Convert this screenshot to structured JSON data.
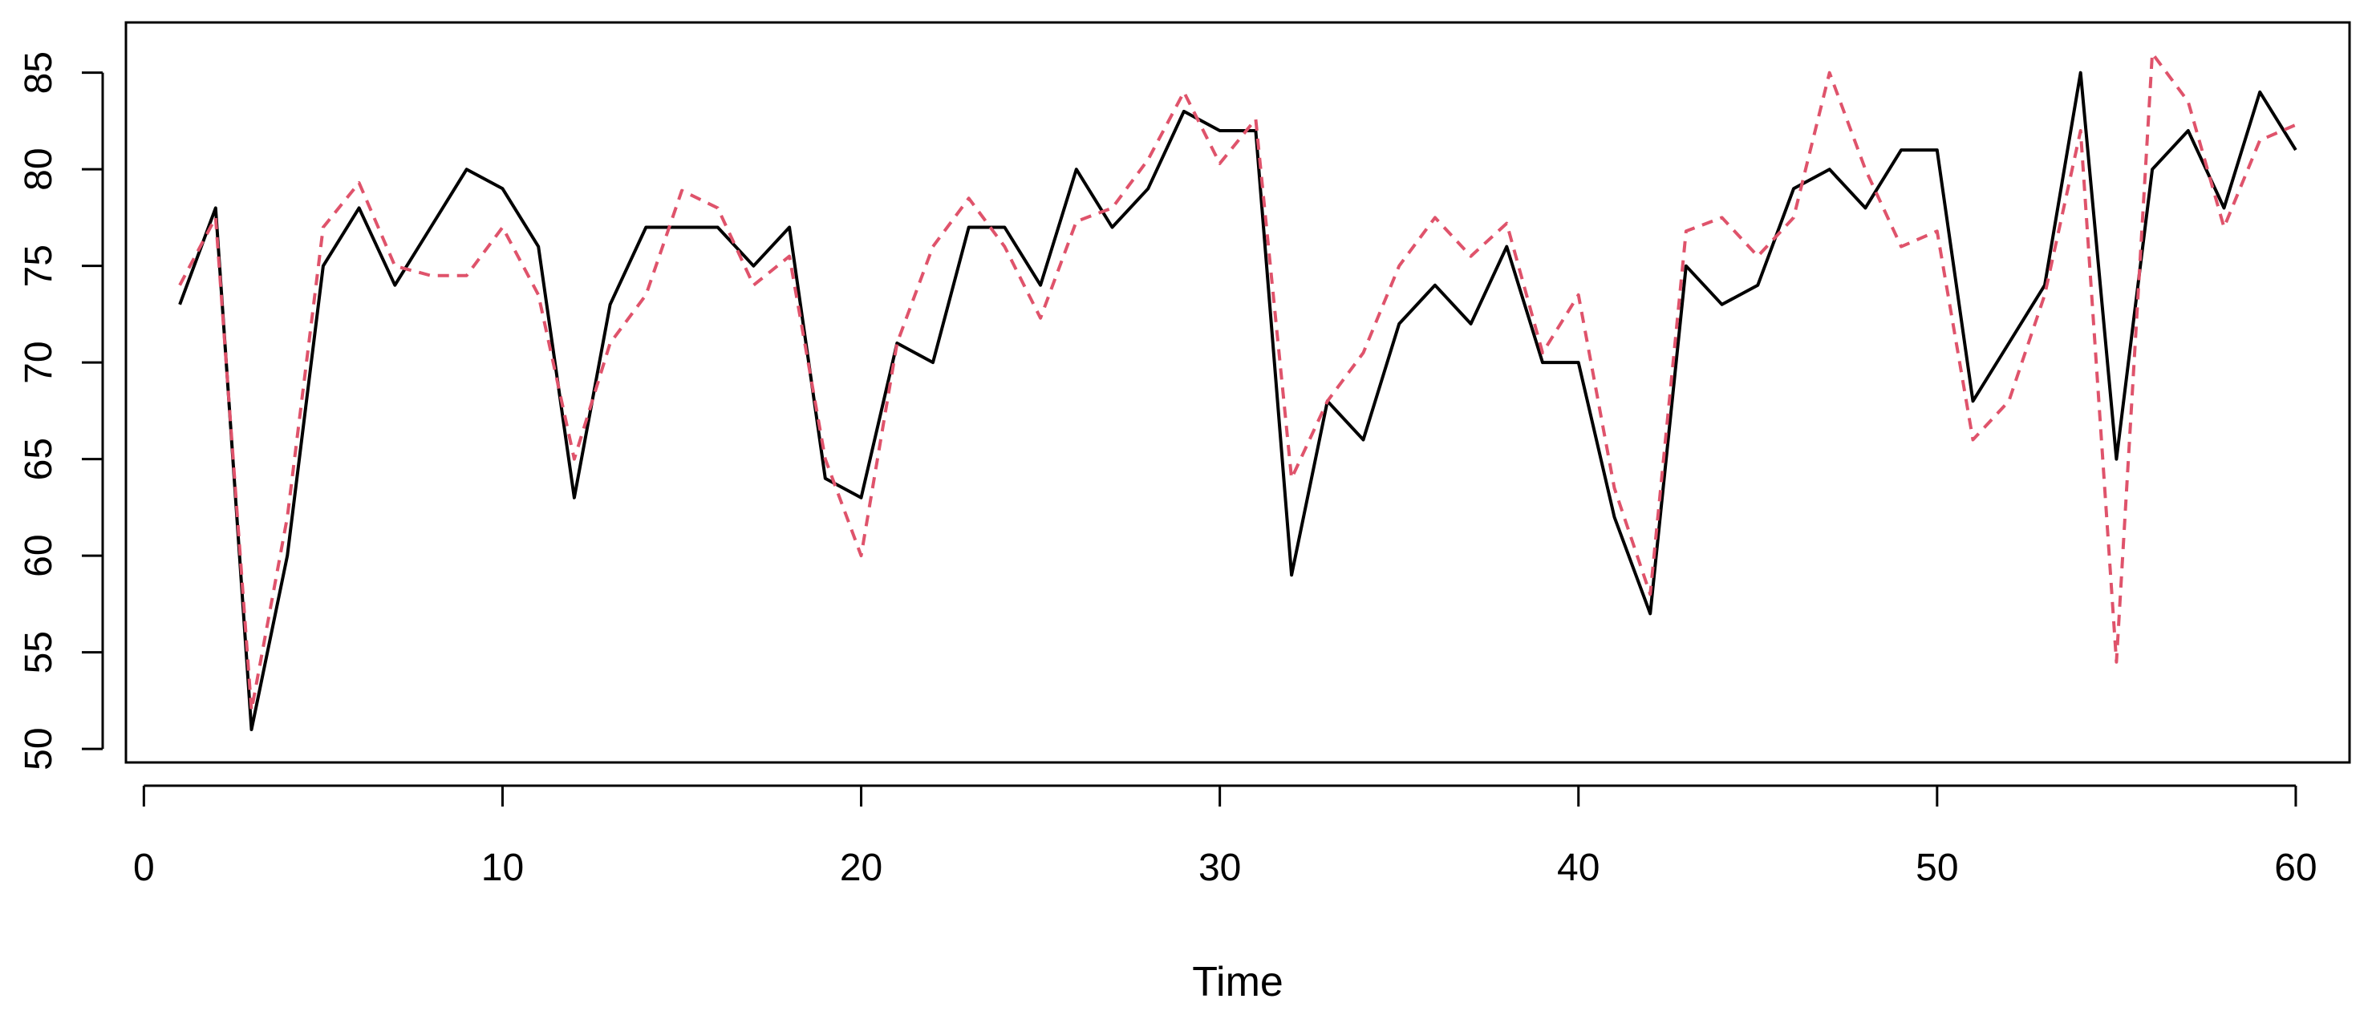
{
  "chart_data": {
    "type": "line",
    "xlabel": "Time",
    "ylabel": "",
    "xlim": [
      -0.5,
      61.5
    ],
    "ylim": [
      49.3,
      87.6
    ],
    "xticks": [
      0,
      10,
      20,
      30,
      40,
      50,
      60
    ],
    "yticks": [
      50,
      55,
      60,
      65,
      70,
      75,
      80,
      85
    ],
    "grid": false,
    "legend": "none",
    "x": [
      1,
      2,
      3,
      4,
      5,
      6,
      7,
      8,
      9,
      10,
      11,
      12,
      13,
      14,
      15,
      16,
      17,
      18,
      19,
      20,
      21,
      22,
      23,
      24,
      25,
      26,
      27,
      28,
      29,
      30,
      31,
      32,
      33,
      34,
      35,
      36,
      37,
      38,
      39,
      40,
      41,
      42,
      43,
      44,
      45,
      46,
      47,
      48,
      49,
      50,
      51,
      52,
      53,
      54,
      55,
      56,
      57,
      58,
      59,
      60
    ],
    "series": [
      {
        "style": "solid",
        "color": "#000000",
        "values": [
          73,
          78,
          51,
          60,
          75,
          78,
          74,
          77,
          80,
          79,
          76,
          63,
          73,
          77,
          77,
          77,
          75,
          77,
          64,
          63,
          71,
          70,
          77,
          77,
          74,
          80,
          77,
          79,
          83,
          82,
          82,
          59,
          68,
          66,
          72,
          74,
          72,
          76,
          70,
          70,
          62,
          57,
          75,
          73,
          74,
          79,
          80,
          78,
          81,
          81,
          68,
          71,
          74,
          85,
          65,
          80,
          82,
          78,
          84,
          81
        ]
      },
      {
        "style": "dashed",
        "color": "#DF536B",
        "values": [
          74,
          77.5,
          52,
          62,
          77,
          79.3,
          75,
          74.5,
          74.5,
          77,
          73.5,
          65,
          71,
          73.5,
          78.9,
          78,
          74,
          75.5,
          65,
          60,
          71,
          76,
          78.5,
          76,
          72.3,
          77.3,
          78,
          80.5,
          84,
          80.3,
          82.6,
          64,
          68,
          70.5,
          75,
          77.5,
          75.5,
          77.2,
          70.5,
          73.5,
          63.5,
          58,
          76.8,
          77.5,
          75.5,
          77.5,
          85,
          80,
          76,
          76.8,
          66,
          68,
          73.5,
          82,
          54.5,
          86,
          83.5,
          77,
          81.5,
          82.3
        ]
      }
    ]
  }
}
